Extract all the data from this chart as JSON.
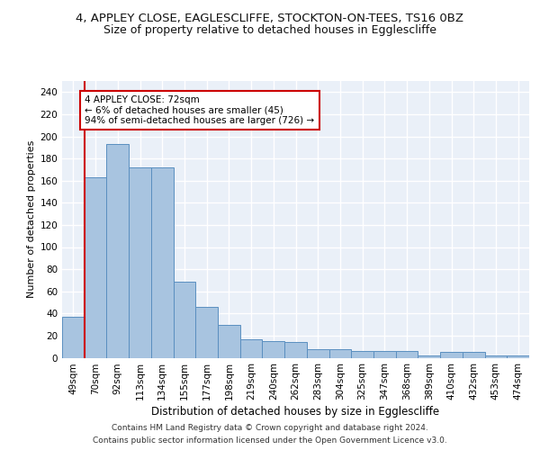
{
  "title1": "4, APPLEY CLOSE, EAGLESCLIFFE, STOCKTON-ON-TEES, TS16 0BZ",
  "title2": "Size of property relative to detached houses in Egglescliffe",
  "xlabel": "Distribution of detached houses by size in Egglescliffe",
  "ylabel": "Number of detached properties",
  "categories": [
    "49sqm",
    "70sqm",
    "92sqm",
    "113sqm",
    "134sqm",
    "155sqm",
    "177sqm",
    "198sqm",
    "219sqm",
    "240sqm",
    "262sqm",
    "283sqm",
    "304sqm",
    "325sqm",
    "347sqm",
    "368sqm",
    "389sqm",
    "410sqm",
    "432sqm",
    "453sqm",
    "474sqm"
  ],
  "values": [
    37,
    163,
    193,
    172,
    172,
    69,
    46,
    30,
    17,
    15,
    14,
    8,
    8,
    6,
    6,
    6,
    2,
    5,
    5,
    2,
    2
  ],
  "bar_color": "#a8c4e0",
  "bar_edge_color": "#5a8fc0",
  "vline_color": "#cc0000",
  "annotation_text": "4 APPLEY CLOSE: 72sqm\n← 6% of detached houses are smaller (45)\n94% of semi-detached houses are larger (726) →",
  "annotation_box_color": "#ffffff",
  "annotation_box_edge": "#cc0000",
  "ylim": [
    0,
    250
  ],
  "yticks": [
    0,
    20,
    40,
    60,
    80,
    100,
    120,
    140,
    160,
    180,
    200,
    220,
    240
  ],
  "footer1": "Contains HM Land Registry data © Crown copyright and database right 2024.",
  "footer2": "Contains public sector information licensed under the Open Government Licence v3.0.",
  "bg_color": "#eaf0f8",
  "grid_color": "#ffffff",
  "title1_fontsize": 9.5,
  "title2_fontsize": 9,
  "ann_fontsize": 7.5,
  "footer_fontsize": 6.5,
  "ylabel_fontsize": 8,
  "xlabel_fontsize": 8.5,
  "tick_fontsize": 7.5
}
